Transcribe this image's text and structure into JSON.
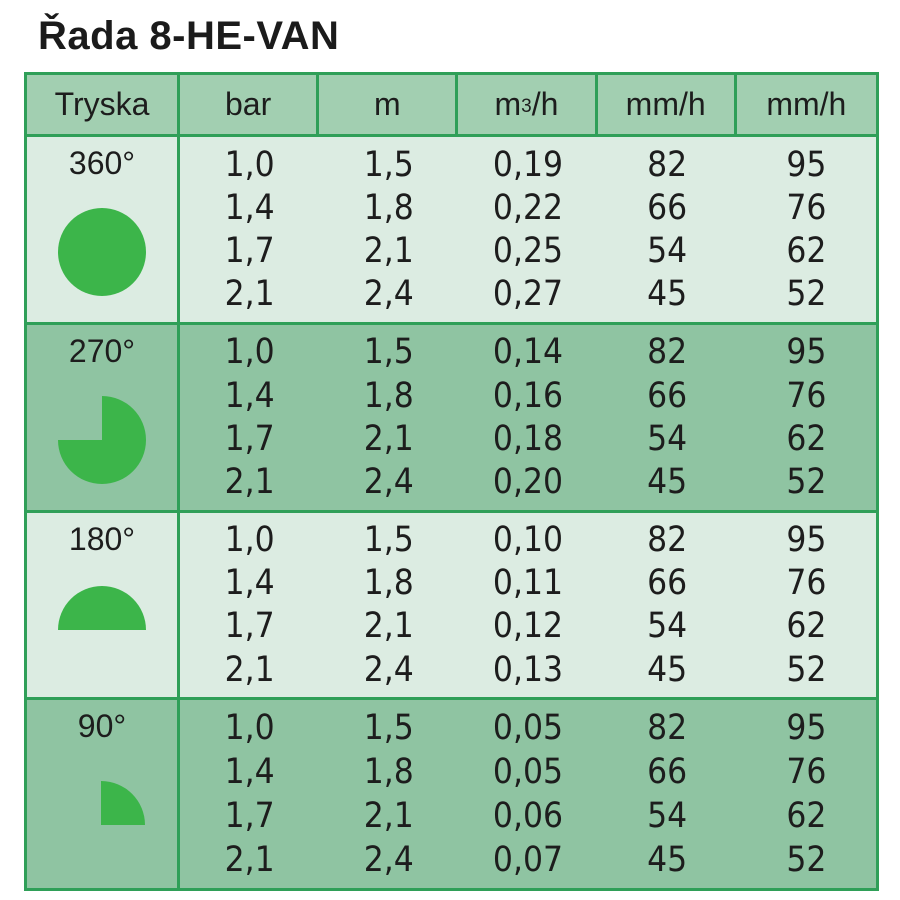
{
  "title": "Řada 8-HE-VAN",
  "colors": {
    "border": "#2f9f58",
    "header_bg": "#a2cfb1",
    "light_bg": "#dcece2",
    "dark_bg": "#8fc4a2",
    "shape_fill": "#3cb54a"
  },
  "header": {
    "nozzle": "Tryska",
    "bar": "bar",
    "m": "m",
    "flow_base": "m",
    "flow_sup": "3",
    "flow_tail": "/h",
    "rate1": "mm/h",
    "rate2": "mm/h"
  },
  "groups": [
    {
      "angle": "360°",
      "shape": "circle-icon",
      "rows": [
        [
          "1,0",
          "1,5",
          "0,19",
          "82",
          "95"
        ],
        [
          "1,4",
          "1,8",
          "0,22",
          "66",
          "76"
        ],
        [
          "1,7",
          "2,1",
          "0,25",
          "54",
          "62"
        ],
        [
          "2,1",
          "2,4",
          "0,27",
          "45",
          "52"
        ]
      ]
    },
    {
      "angle": "270°",
      "shape": "three-quarter-circle-icon",
      "rows": [
        [
          "1,0",
          "1,5",
          "0,14",
          "82",
          "95"
        ],
        [
          "1,4",
          "1,8",
          "0,16",
          "66",
          "76"
        ],
        [
          "1,7",
          "2,1",
          "0,18",
          "54",
          "62"
        ],
        [
          "2,1",
          "2,4",
          "0,20",
          "45",
          "52"
        ]
      ]
    },
    {
      "angle": "180°",
      "shape": "half-circle-icon",
      "rows": [
        [
          "1,0",
          "1,5",
          "0,10",
          "82",
          "95"
        ],
        [
          "1,4",
          "1,8",
          "0,11",
          "66",
          "76"
        ],
        [
          "1,7",
          "2,1",
          "0,12",
          "54",
          "62"
        ],
        [
          "2,1",
          "2,4",
          "0,13",
          "45",
          "52"
        ]
      ]
    },
    {
      "angle": "90°",
      "shape": "quarter-circle-icon",
      "rows": [
        [
          "1,0",
          "1,5",
          "0,05",
          "82",
          "95"
        ],
        [
          "1,4",
          "1,8",
          "0,05",
          "66",
          "76"
        ],
        [
          "1,7",
          "2,1",
          "0,06",
          "54",
          "62"
        ],
        [
          "2,1",
          "2,4",
          "0,07",
          "45",
          "52"
        ]
      ]
    }
  ]
}
